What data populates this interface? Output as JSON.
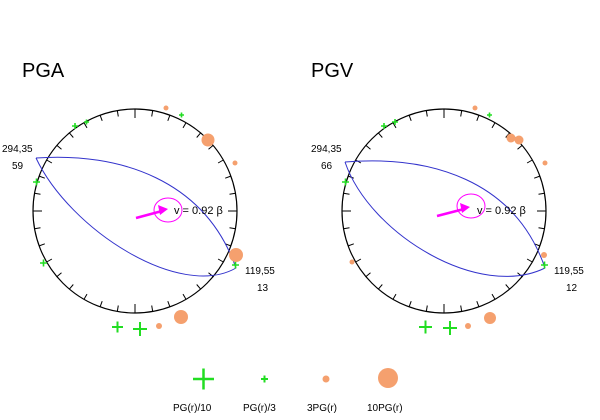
{
  "colors": {
    "green": "#22dd22",
    "orange": "#f5a06e",
    "blue": "#3333cc",
    "magenta": "#ff00ff",
    "black": "#000000"
  },
  "panels": [
    {
      "title": "PGA",
      "left_label_top": "294,35",
      "left_label_bottom": "59",
      "right_label_top": "119,55",
      "right_label_bottom": "13",
      "velocity_text": "v = 0.92 β"
    },
    {
      "title": "PGV",
      "left_label_top": "294,35",
      "left_label_bottom": "66",
      "right_label_top": "119,55",
      "right_label_bottom": "12",
      "velocity_text": "v = 0.92 β"
    }
  ],
  "legend": [
    {
      "label": "PG(r)/10",
      "marker": "large-green-plus-icon"
    },
    {
      "label": "PG(r)/3",
      "marker": "small-green-plus-icon"
    },
    {
      "label": "3PG(r)",
      "marker": "small-orange-dot-icon"
    },
    {
      "label": "10PG(r)",
      "marker": "large-orange-dot-icon"
    }
  ]
}
